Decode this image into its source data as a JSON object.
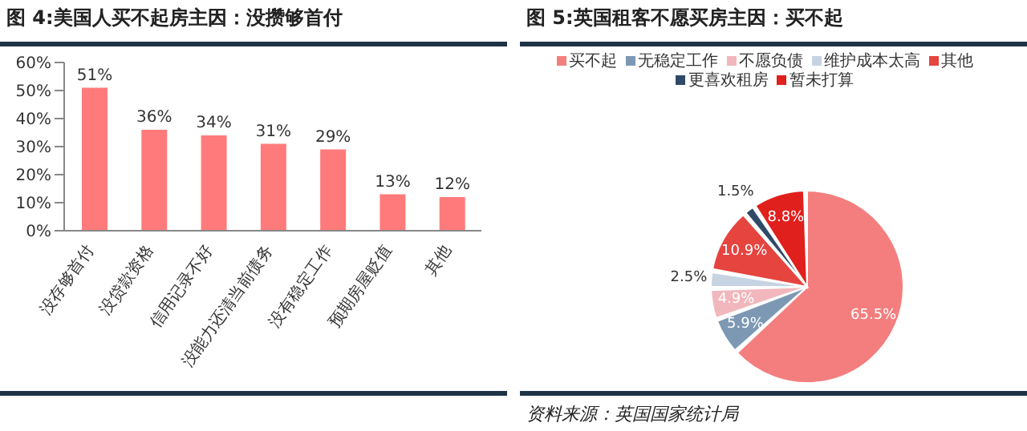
{
  "chart_data": [
    {
      "type": "bar",
      "title": "图 4:美国人买不起房主因：没攒够首付",
      "categories": [
        "没存够首付",
        "没贷款资格",
        "信用记录不好",
        "没能力还清当前债务",
        "没有稳定工作",
        "预期房屋贬值",
        "其他"
      ],
      "values": [
        51,
        36,
        34,
        31,
        29,
        13,
        12
      ],
      "color": "#ff7b7b",
      "value_labels": [
        "51%",
        "36%",
        "34%",
        "31%",
        "29%",
        "13%",
        "12%"
      ],
      "ylim": [
        0,
        60
      ],
      "yticks": [
        {
          "value": 0,
          "label": "0%"
        },
        {
          "value": 10,
          "label": "10%"
        },
        {
          "value": 20,
          "label": "20%"
        },
        {
          "value": 30,
          "label": "30%"
        },
        {
          "value": 40,
          "label": "40%"
        },
        {
          "value": 50,
          "label": "50%"
        },
        {
          "value": 60,
          "label": "60%"
        }
      ],
      "grid": false
    },
    {
      "type": "pie",
      "title": "图 5:英国租客不愿买房主因：买不起",
      "categories": [
        "买不起",
        "无稳定工作",
        "不愿负债",
        "维护成本太高",
        "其他",
        "更喜欢租房",
        "暂未打算"
      ],
      "values": [
        65.5,
        5.9,
        4.9,
        2.5,
        10.9,
        1.5,
        8.8
      ],
      "colors": [
        "#f47e7e",
        "#7d98b3",
        "#f2b6bd",
        "#c6d3e2",
        "#e5443f",
        "#2e4a68",
        "#e0201c"
      ],
      "value_labels": [
        "65.5%",
        "5.9%",
        "4.9%",
        "2.5%",
        "10.9%",
        "1.5%",
        "8.8%"
      ],
      "legend": "top",
      "annotations": [
        "资料来源：英国国家统计局"
      ]
    }
  ]
}
